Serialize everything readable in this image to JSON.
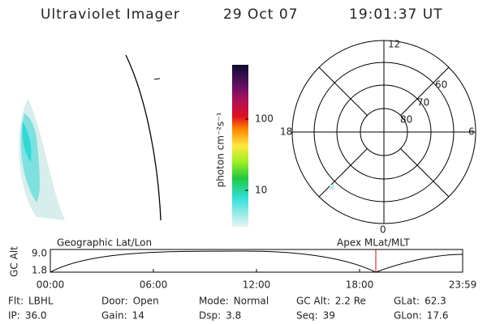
{
  "header": {
    "instrument": "Ultraviolet Imager",
    "date": "29 Oct 07",
    "time": "19:01:37 UT"
  },
  "colorbar": {
    "label": "photon cm⁻²s⁻¹",
    "ticks": [
      "100",
      "10"
    ]
  },
  "polar": {
    "mlt_labels": [
      "12",
      "18",
      "6",
      "0"
    ],
    "lat_labels": [
      "60",
      "70",
      "80"
    ]
  },
  "timeline": {
    "left_title": "Geographic Lat/Lon",
    "right_title": "Apex MLat/MLT",
    "axis_label": "GC Alt",
    "y_labels": [
      "9.0",
      "1.8"
    ],
    "x_labels": [
      "00:00",
      "06:00",
      "12:00",
      "18:00",
      "23:59"
    ]
  },
  "footer": [
    [
      {
        "label": "Flt:",
        "value": "LBHL"
      },
      {
        "label": "Door:",
        "value": "Open"
      },
      {
        "label": "Mode:",
        "value": "Normal"
      },
      {
        "label": "GC Alt:",
        "value": "2.2 Re"
      },
      {
        "label": "GLat:",
        "value": "62.3"
      }
    ],
    [
      {
        "label": "IP:",
        "value": "36.0"
      },
      {
        "label": "Gain:",
        "value": "14"
      },
      {
        "label": "Dsp:",
        "value": "3.8"
      },
      {
        "label": "Seq:",
        "value": "39"
      },
      {
        "label": "GLon:",
        "value": "17.6"
      }
    ]
  ]
}
